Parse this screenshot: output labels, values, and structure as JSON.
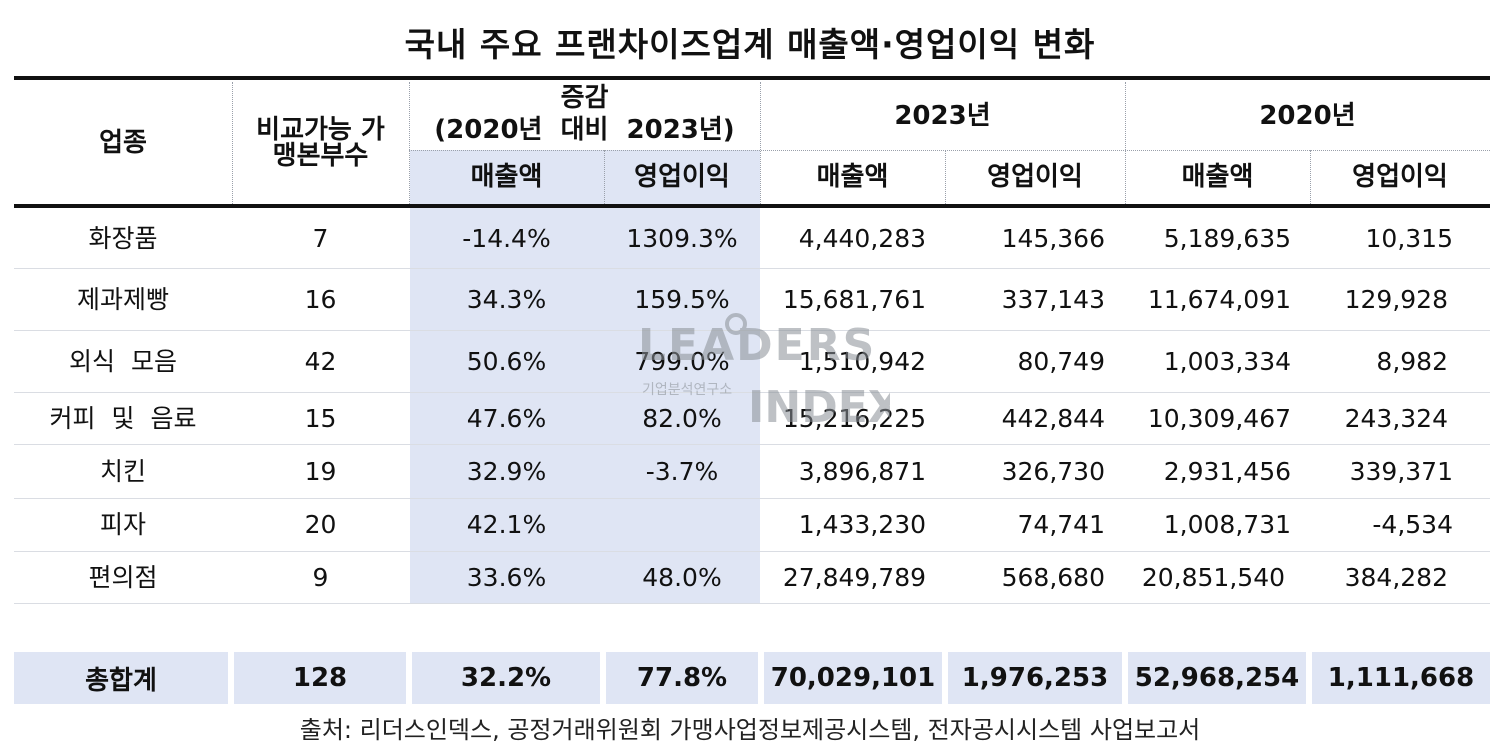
{
  "title": "국내 주요 프랜차이즈업계 매출액·영업이익 변화",
  "chart_data": {
    "type": "table",
    "title": "국내 주요 프랜차이즈업계 매출액·영업이익 변화",
    "headers": {
      "industry": "업종",
      "brand_count": "비교가능 가맹본부수",
      "change_group_line1": "증감",
      "change_group_line2": "(2020년  대비  2023년)",
      "year_2023": "2023년",
      "year_2020": "2020년",
      "sales": "매출액",
      "op_profit": "영업이익"
    },
    "columns": [
      "업종",
      "비교가능 가맹본부수",
      "증감 매출액",
      "증감 영업이익",
      "2023년 매출액",
      "2023년 영업이익",
      "2020년 매출액",
      "2020년 영업이익"
    ],
    "rows": [
      [
        "화장품",
        "7",
        "-14.4%",
        "1309.3%",
        "4,440,283",
        "145,366",
        "5,189,635",
        "10,315"
      ],
      [
        "제과제빵",
        "16",
        "34.3%",
        "159.5%",
        "15,681,761",
        "337,143",
        "11,674,091",
        "129,928"
      ],
      [
        "외식 모음",
        "42",
        "50.6%",
        "799.0%",
        "1,510,942",
        "80,749",
        "1,003,334",
        "8,982"
      ],
      [
        "커피 및 음료",
        "15",
        "47.6%",
        "82.0%",
        "15,216,225",
        "442,844",
        "10,309,467",
        "243,324"
      ],
      [
        "치킨",
        "19",
        "32.9%",
        "-3.7%",
        "3,896,871",
        "326,730",
        "2,931,456",
        "339,371"
      ],
      [
        "피자",
        "20",
        "42.1%",
        "",
        "1,433,230",
        "74,741",
        "1,008,731",
        "-4,534"
      ],
      [
        "편의점",
        "9",
        "33.6%",
        "48.0%",
        "27,849,789",
        "568,680",
        "20,851,540",
        "384,282"
      ]
    ],
    "total": [
      "총합계",
      "128",
      "32.2%",
      "77.8%",
      "70,029,101",
      "1,976,253",
      "52,968,254",
      "1,111,668"
    ]
  },
  "watermark": {
    "brand_line1": "LEADERS",
    "brand_line2": "INDEX",
    "subtitle": "기업분석연구소"
  },
  "source": "출처: 리더스인덱스, 공정거래위원회 가맹사업정보제공시스템, 전자공시시스템 사업보고서",
  "colors": {
    "highlight": "#dfe5f4",
    "rule": "#111111",
    "watermark": "#8a9096"
  }
}
